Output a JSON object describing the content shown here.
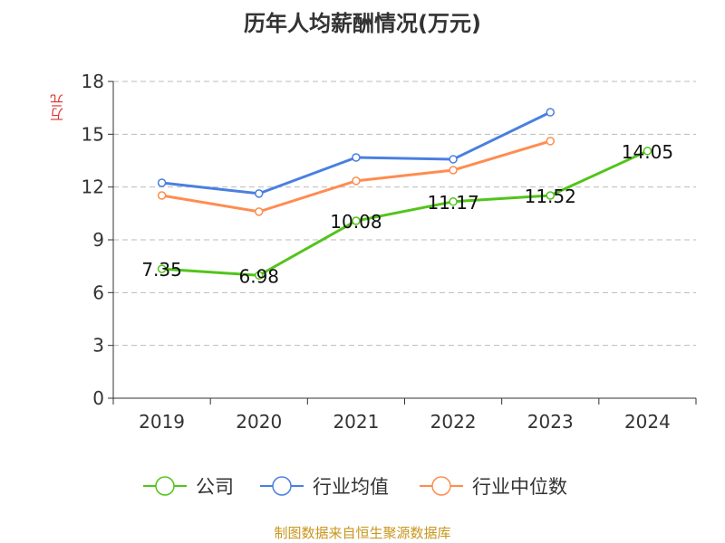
{
  "chart_data": {
    "type": "line",
    "title": "历年人均薪酬情况(万元)",
    "ylabel": "万元",
    "xlabel": "",
    "categories": [
      "2019",
      "2020",
      "2021",
      "2022",
      "2023",
      "2024"
    ],
    "ylim": [
      0,
      18
    ],
    "yticks": [
      0,
      3,
      6,
      9,
      12,
      15,
      18
    ],
    "grid": true,
    "legend_position": "bottom",
    "series": [
      {
        "name": "公司",
        "color": "#52c41a",
        "values": [
          7.35,
          6.98,
          10.08,
          11.17,
          11.52,
          14.05
        ],
        "labels": [
          "7.35",
          "6.98",
          "10.08",
          "11.17",
          "11.52",
          "14.05"
        ]
      },
      {
        "name": "行业均值",
        "color": "#4a7fe0",
        "values": [
          12.24,
          11.63,
          13.68,
          13.58,
          16.25,
          null
        ]
      },
      {
        "name": "行业中位数",
        "color": "#ff8c50",
        "values": [
          11.52,
          10.6,
          12.35,
          12.96,
          14.61,
          null
        ]
      }
    ]
  },
  "source": "制图数据来自恒生聚源数据库"
}
